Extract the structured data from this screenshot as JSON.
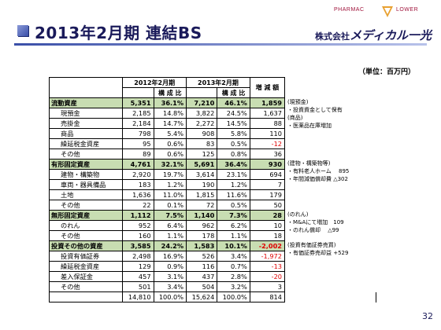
{
  "header": {
    "title": "2013年2月期 連結BS",
    "logo_left": "PHARMAC",
    "logo_right": "LOWER",
    "company_prefix": "株式会社",
    "company_name": "メディカル一光"
  },
  "unit": "（単位：百万円）",
  "columns": {
    "year_2012": "2012年2月期",
    "year_2013": "2013年2月期",
    "ratio": "構 成 比",
    "change": "増 減 額"
  },
  "rows": [
    {
      "label": "流動資産",
      "v12": "5,351",
      "p12": "36.1%",
      "v13": "7,210",
      "p13": "46.1%",
      "diff": "1,859",
      "neg": false,
      "cat": true
    },
    {
      "label": "現預金",
      "v12": "2,185",
      "p12": "14.8%",
      "v13": "3,822",
      "p13": "24.5%",
      "diff": "1,637",
      "neg": false,
      "cat": false
    },
    {
      "label": "売掛金",
      "v12": "2,184",
      "p12": "14.7%",
      "v13": "2,272",
      "p13": "14.5%",
      "diff": "88",
      "neg": false,
      "cat": false
    },
    {
      "label": "商品",
      "v12": "798",
      "p12": "5.4%",
      "v13": "908",
      "p13": "5.8%",
      "diff": "110",
      "neg": false,
      "cat": false
    },
    {
      "label": "繰延税金資産",
      "v12": "95",
      "p12": "0.6%",
      "v13": "83",
      "p13": "0.5%",
      "diff": "-12",
      "neg": true,
      "cat": false
    },
    {
      "label": "その他",
      "v12": "89",
      "p12": "0.6%",
      "v13": "125",
      "p13": "0.8%",
      "diff": "36",
      "neg": false,
      "cat": false
    },
    {
      "label": "有形固定資産",
      "v12": "4,761",
      "p12": "32.1%",
      "v13": "5,691",
      "p13": "36.4%",
      "diff": "930",
      "neg": false,
      "cat": true
    },
    {
      "label": "建物・構築物",
      "v12": "2,920",
      "p12": "19.7%",
      "v13": "3,614",
      "p13": "23.1%",
      "diff": "694",
      "neg": false,
      "cat": false
    },
    {
      "label": "車両・器具備品",
      "v12": "183",
      "p12": "1.2%",
      "v13": "190",
      "p13": "1.2%",
      "diff": "7",
      "neg": false,
      "cat": false
    },
    {
      "label": "土地",
      "v12": "1,636",
      "p12": "11.0%",
      "v13": "1,815",
      "p13": "11.6%",
      "diff": "179",
      "neg": false,
      "cat": false
    },
    {
      "label": "その他",
      "v12": "22",
      "p12": "0.1%",
      "v13": "72",
      "p13": "0.5%",
      "diff": "50",
      "neg": false,
      "cat": false
    },
    {
      "label": "無形固定資産",
      "v12": "1,112",
      "p12": "7.5%",
      "v13": "1,140",
      "p13": "7.3%",
      "diff": "28",
      "neg": false,
      "cat": true
    },
    {
      "label": "のれん",
      "v12": "952",
      "p12": "6.4%",
      "v13": "962",
      "p13": "6.2%",
      "diff": "10",
      "neg": false,
      "cat": false
    },
    {
      "label": "その他",
      "v12": "160",
      "p12": "1.1%",
      "v13": "178",
      "p13": "1.1%",
      "diff": "18",
      "neg": false,
      "cat": false
    },
    {
      "label": "投資その他の資産",
      "v12": "3,585",
      "p12": "24.2%",
      "v13": "1,583",
      "p13": "10.1%",
      "diff": "-2,002",
      "neg": true,
      "cat": true
    },
    {
      "label": "投資有価証券",
      "v12": "2,498",
      "p12": "16.9%",
      "v13": "526",
      "p13": "3.4%",
      "diff": "-1,972",
      "neg": true,
      "cat": false
    },
    {
      "label": "繰延税金資産",
      "v12": "129",
      "p12": "0.9%",
      "v13": "116",
      "p13": "0.7%",
      "diff": "-13",
      "neg": true,
      "cat": false
    },
    {
      "label": "差入保証金",
      "v12": "457",
      "p12": "3.1%",
      "v13": "437",
      "p13": "2.8%",
      "diff": "-20",
      "neg": true,
      "cat": false
    },
    {
      "label": "その他",
      "v12": "501",
      "p12": "3.4%",
      "v13": "504",
      "p13": "3.2%",
      "diff": "3",
      "neg": false,
      "cat": false
    },
    {
      "label": "",
      "v12": "14,810",
      "p12": "100.0%",
      "v13": "15,624",
      "p13": "100.0%",
      "diff": "814",
      "neg": false,
      "cat": false
    }
  ],
  "notes": {
    "current": [
      "(現預金)",
      "・投資資金として保有",
      "(商品)",
      "・医薬品在庫増加"
    ],
    "tangible": [
      "(建物・構築物等)",
      "・有料老人ホーム　 895",
      "・年間減価償却費 △302"
    ],
    "intangible": [
      "(のれん)",
      "・M&Aにて増加　109",
      "・のれん償却　 △99"
    ],
    "investment": [
      "(投資有価証券売買)",
      "・有価証券売却益 +529"
    ]
  },
  "page_number": "32",
  "colors": {
    "category_bg": "#c8ddb2",
    "negative": "#e00000",
    "title": "#1a1a5a"
  }
}
